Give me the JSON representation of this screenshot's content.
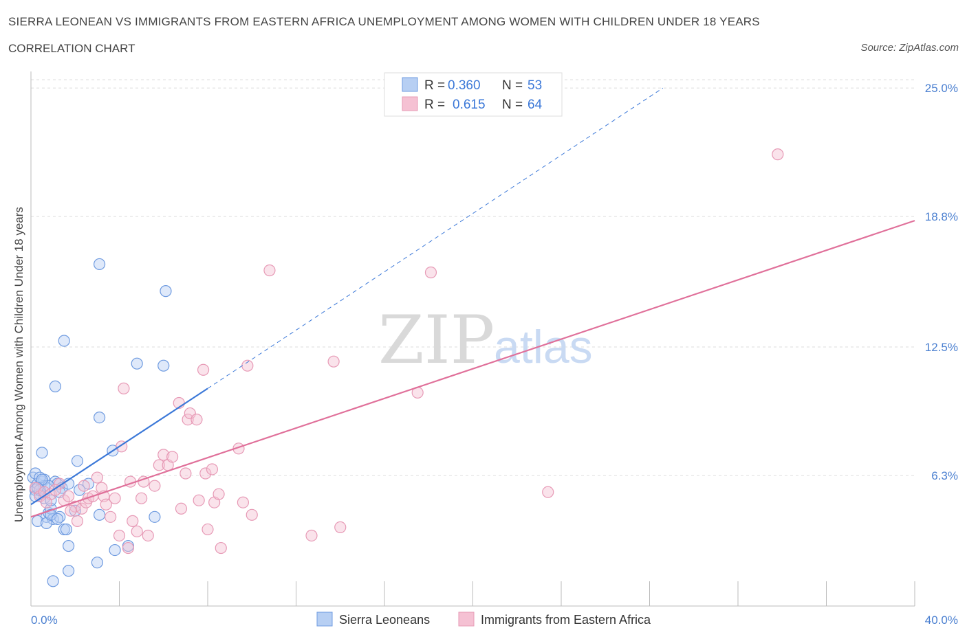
{
  "title": "SIERRA LEONEAN VS IMMIGRANTS FROM EASTERN AFRICA UNEMPLOYMENT AMONG WOMEN WITH CHILDREN UNDER 18 YEARS",
  "subtitle": "CORRELATION CHART",
  "source": "Source: ZipAtlas.com",
  "watermark": {
    "zip": "ZIP",
    "atlas": "atlas"
  },
  "colors": {
    "blue": "#3b78d8",
    "blue_fill": "#b7cff3",
    "pink": "#e0709a",
    "pink_fill": "#f5c1d3",
    "grid": "#dddddd",
    "tick_text": "#4a7fd0"
  },
  "legend": {
    "r_label": "R =",
    "n_label": "N =",
    "rows": [
      {
        "series": "Sierra Leoneans",
        "r": "0.360",
        "n": "53"
      },
      {
        "series": "Immigrants from Eastern Africa",
        "r": "0.615",
        "n": "64"
      }
    ]
  },
  "chart_data": {
    "type": "scatter",
    "title": "SIERRA LEONEAN VS IMMIGRANTS FROM EASTERN AFRICA UNEMPLOYMENT AMONG WOMEN WITH CHILDREN UNDER 18 YEARS",
    "xlabel": "",
    "ylabel": "Unemployment Among Women with Children Under 18 years",
    "xlim": [
      0,
      40
    ],
    "ylim": [
      0,
      25.8
    ],
    "x_tick_labels": [
      "0.0%",
      "40.0%"
    ],
    "y_ticks": [
      6.3,
      12.5,
      18.8,
      25.0
    ],
    "y_tick_labels": [
      "6.3%",
      "12.5%",
      "18.8%",
      "25.0%"
    ],
    "grid": true,
    "legend_position": "top-center",
    "series": [
      {
        "name": "Sierra Leoneans",
        "color": "#3b78d8",
        "trend": {
          "x": [
            0,
            8.0
          ],
          "y": [
            4.9,
            10.5
          ],
          "dashed_to": [
            28.6,
            25.0
          ]
        },
        "points": [
          [
            0.1,
            6.2
          ],
          [
            0.2,
            6.4
          ],
          [
            0.2,
            5.6
          ],
          [
            0.3,
            5.9
          ],
          [
            0.4,
            5.4
          ],
          [
            0.5,
            6.0
          ],
          [
            0.6,
            6.1
          ],
          [
            0.5,
            7.4
          ],
          [
            0.6,
            5.2
          ],
          [
            0.7,
            4.3
          ],
          [
            0.8,
            4.5
          ],
          [
            0.9,
            4.7
          ],
          [
            1.0,
            4.2
          ],
          [
            1.1,
            6.0
          ],
          [
            1.2,
            5.9
          ],
          [
            1.3,
            4.3
          ],
          [
            1.4,
            5.7
          ],
          [
            1.5,
            3.7
          ],
          [
            1.6,
            3.7
          ],
          [
            1.5,
            12.8
          ],
          [
            1.7,
            5.9
          ],
          [
            1.1,
            10.6
          ],
          [
            2.1,
            7.0
          ],
          [
            2.2,
            5.6
          ],
          [
            2.6,
            5.9
          ],
          [
            3.1,
            16.5
          ],
          [
            3.1,
            9.1
          ],
          [
            3.1,
            4.4
          ],
          [
            3.7,
            7.5
          ],
          [
            3.0,
            2.1
          ],
          [
            3.8,
            2.7
          ],
          [
            4.4,
            2.9
          ],
          [
            1.7,
            2.9
          ],
          [
            1.0,
            1.2
          ],
          [
            1.7,
            1.7
          ],
          [
            4.8,
            11.7
          ],
          [
            5.6,
            4.3
          ],
          [
            6.0,
            11.6
          ],
          [
            6.1,
            15.2
          ],
          [
            0.6,
            5.8
          ],
          [
            0.3,
            4.1
          ],
          [
            0.7,
            4.0
          ],
          [
            0.9,
            5.1
          ],
          [
            0.2,
            5.3
          ],
          [
            0.4,
            6.2
          ],
          [
            0.8,
            5.8
          ],
          [
            1.3,
            5.5
          ],
          [
            0.4,
            5.6
          ],
          [
            2.0,
            4.6
          ],
          [
            0.9,
            4.4
          ],
          [
            0.5,
            6.1
          ],
          [
            1.2,
            4.2
          ],
          [
            0.3,
            5.7
          ]
        ]
      },
      {
        "name": "Immigrants from Eastern Africa",
        "color": "#e0709a",
        "trend": {
          "x": [
            0,
            40
          ],
          "y": [
            4.3,
            18.6
          ]
        },
        "points": [
          [
            0.2,
            5.7
          ],
          [
            0.4,
            5.3
          ],
          [
            0.6,
            5.5
          ],
          [
            0.9,
            5.4
          ],
          [
            1.3,
            5.9
          ],
          [
            1.5,
            5.1
          ],
          [
            1.7,
            5.3
          ],
          [
            2.0,
            4.8
          ],
          [
            2.1,
            4.1
          ],
          [
            2.3,
            4.7
          ],
          [
            2.5,
            5.0
          ],
          [
            2.6,
            5.2
          ],
          [
            2.8,
            5.3
          ],
          [
            3.0,
            6.2
          ],
          [
            3.2,
            5.7
          ],
          [
            3.3,
            5.3
          ],
          [
            3.6,
            4.3
          ],
          [
            3.8,
            5.2
          ],
          [
            4.0,
            3.4
          ],
          [
            4.1,
            7.7
          ],
          [
            4.2,
            10.5
          ],
          [
            4.4,
            2.8
          ],
          [
            4.5,
            6.0
          ],
          [
            4.8,
            3.6
          ],
          [
            5.0,
            5.2
          ],
          [
            5.1,
            6.0
          ],
          [
            5.3,
            3.4
          ],
          [
            5.6,
            5.8
          ],
          [
            5.8,
            6.8
          ],
          [
            6.0,
            7.3
          ],
          [
            6.2,
            6.8
          ],
          [
            6.4,
            7.2
          ],
          [
            6.7,
            9.8
          ],
          [
            6.8,
            4.7
          ],
          [
            7.0,
            6.4
          ],
          [
            7.1,
            9.0
          ],
          [
            7.2,
            9.3
          ],
          [
            7.5,
            9.0
          ],
          [
            7.6,
            5.1
          ],
          [
            7.8,
            11.4
          ],
          [
            7.9,
            6.4
          ],
          [
            8.0,
            3.7
          ],
          [
            8.2,
            6.6
          ],
          [
            8.3,
            5.0
          ],
          [
            8.5,
            5.4
          ],
          [
            8.6,
            2.8
          ],
          [
            9.4,
            7.6
          ],
          [
            9.6,
            5.0
          ],
          [
            9.8,
            11.6
          ],
          [
            10.0,
            4.4
          ],
          [
            10.8,
            16.2
          ],
          [
            12.7,
            3.4
          ],
          [
            13.7,
            11.8
          ],
          [
            14.0,
            3.8
          ],
          [
            17.5,
            10.3
          ],
          [
            18.1,
            16.1
          ],
          [
            23.4,
            5.5
          ],
          [
            33.8,
            21.8
          ],
          [
            1.8,
            4.6
          ],
          [
            2.4,
            5.8
          ],
          [
            0.7,
            5.0
          ],
          [
            1.1,
            5.6
          ],
          [
            3.4,
            4.9
          ],
          [
            4.6,
            4.1
          ]
        ]
      }
    ]
  },
  "bottom_legend": [
    {
      "label": "Sierra Leoneans"
    },
    {
      "label": "Immigrants from Eastern Africa"
    }
  ]
}
